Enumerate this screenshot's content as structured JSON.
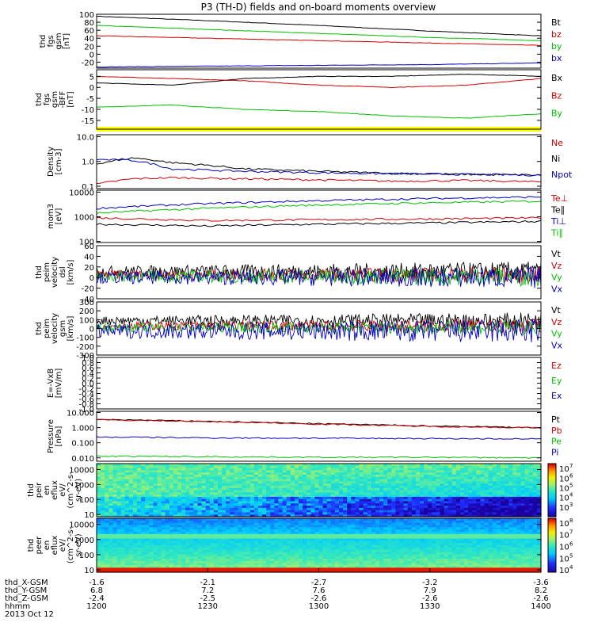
{
  "title": "P3 (TH-D) fields and on-board moments overview",
  "chart_data": [
    {
      "type": "line",
      "ylabel": [
        "thd",
        "fgs",
        "gsm",
        "[nT]"
      ],
      "ylim": [
        -35,
        100
      ],
      "yticks": [
        {
          "v": 100,
          "t": "100"
        },
        {
          "v": 80,
          "t": "80"
        },
        {
          "v": 60,
          "t": "60"
        },
        {
          "v": 40,
          "t": "40"
        },
        {
          "v": 20,
          "t": "20"
        },
        {
          "v": 0,
          "t": "0"
        },
        {
          "v": -20,
          "t": "-20"
        }
      ],
      "series": [
        {
          "name": "Bt",
          "color": "#000000",
          "x": [
            0,
            60,
            120,
            180,
            240
          ],
          "values": [
            95,
            84,
            72,
            58,
            46
          ]
        },
        {
          "name": "bz",
          "color": "#d00000",
          "x": [
            0,
            60,
            120,
            180,
            240
          ],
          "values": [
            46,
            40,
            34,
            28,
            22
          ]
        },
        {
          "name": "by",
          "color": "#00c000",
          "x": [
            0,
            60,
            120,
            180,
            240
          ],
          "values": [
            72,
            62,
            52,
            42,
            34
          ]
        },
        {
          "name": "bx",
          "color": "#0000c0",
          "x": [
            0,
            60,
            120,
            180,
            240
          ],
          "values": [
            -32,
            -30,
            -28,
            -26,
            -22
          ]
        }
      ]
    },
    {
      "type": "line",
      "ylabel": [
        "thd",
        "fgs",
        "gsm",
        "-BFF",
        "[nT]"
      ],
      "ylim": [
        -19,
        8
      ],
      "yticks": [
        {
          "v": 5,
          "t": "5"
        },
        {
          "v": 0,
          "t": "0"
        },
        {
          "v": -5,
          "t": "-5"
        },
        {
          "v": -10,
          "t": "-10"
        },
        {
          "v": -15,
          "t": "-15"
        }
      ],
      "series": [
        {
          "name": "Bx",
          "color": "#000000",
          "x": [
            0,
            40,
            80,
            120,
            160,
            200,
            240
          ],
          "values": [
            2,
            1,
            4,
            5,
            5,
            6,
            5
          ]
        },
        {
          "name": "Bz",
          "color": "#d00000",
          "x": [
            0,
            40,
            80,
            120,
            160,
            200,
            240
          ],
          "values": [
            5,
            4,
            3,
            1,
            0,
            1,
            4
          ]
        },
        {
          "name": "By",
          "color": "#00c000",
          "x": [
            0,
            40,
            80,
            120,
            160,
            200,
            240
          ],
          "values": [
            -9,
            -8,
            -10,
            -11,
            -13,
            -14,
            -12
          ]
        }
      ]
    },
    {
      "type": "line",
      "ylabel": [
        "Density",
        "[cm-3]"
      ],
      "scale": "log",
      "ylim": [
        0.08,
        12
      ],
      "yticks": [
        {
          "v": 10,
          "t": "10.0"
        },
        {
          "v": 1,
          "t": "1.0"
        },
        {
          "v": 0.1,
          "t": "0.1"
        }
      ],
      "series": [
        {
          "name": "Ne",
          "color": "#d00000",
          "x": [
            0,
            20,
            40,
            80,
            120,
            160,
            200,
            240
          ],
          "values": [
            0.12,
            0.2,
            0.22,
            0.2,
            0.18,
            0.16,
            0.17,
            0.15
          ]
        },
        {
          "name": "Ni",
          "color": "#000000",
          "x": [
            0,
            20,
            40,
            80,
            120,
            160,
            200,
            240
          ],
          "values": [
            0.8,
            1.4,
            0.9,
            0.5,
            0.4,
            0.33,
            0.3,
            0.28
          ]
        },
        {
          "name": "Npot",
          "color": "#0000c0",
          "x": [
            0,
            20,
            40,
            80,
            120,
            160,
            200,
            240
          ],
          "values": [
            1.2,
            1.1,
            0.5,
            0.4,
            0.35,
            0.32,
            0.3,
            0.28
          ]
        }
      ]
    },
    {
      "type": "line",
      "ylabel": [
        "mom3",
        "[eV]"
      ],
      "scale": "log",
      "ylim": [
        90,
        12000
      ],
      "yticks": [
        {
          "v": 10000,
          "t": "10000"
        },
        {
          "v": 1000,
          "t": "1000"
        },
        {
          "v": 100,
          "t": "100"
        }
      ],
      "series": [
        {
          "name": "Te⊥",
          "color": "#d00000",
          "x": [
            0,
            60,
            120,
            180,
            240
          ],
          "values": [
            900,
            700,
            760,
            820,
            900
          ]
        },
        {
          "name": "Te∥",
          "color": "#000000",
          "x": [
            0,
            60,
            120,
            180,
            240
          ],
          "values": [
            500,
            420,
            500,
            560,
            650
          ]
        },
        {
          "name": "Ti⊥",
          "color": "#0000c0",
          "x": [
            0,
            60,
            120,
            180,
            240
          ],
          "values": [
            2200,
            3400,
            4500,
            5500,
            6400
          ]
        },
        {
          "name": "Ti∥",
          "color": "#00c000",
          "x": [
            0,
            60,
            120,
            180,
            240
          ],
          "values": [
            1400,
            2200,
            3000,
            3700,
            4300
          ]
        }
      ]
    },
    {
      "type": "line",
      "ylabel": [
        "thd",
        "peim",
        "velocity",
        "dsl",
        "[km/s]"
      ],
      "ylim": [
        -40,
        60
      ],
      "yticks": [
        {
          "v": 60,
          "t": "60"
        },
        {
          "v": 40,
          "t": "40"
        },
        {
          "v": 20,
          "t": "20"
        },
        {
          "v": 0,
          "t": "0"
        },
        {
          "v": -20,
          "t": "-20"
        },
        {
          "v": -40,
          "t": "-40"
        }
      ],
      "series": [
        {
          "name": "Vt",
          "color": "#000000",
          "base": 12,
          "amp": 14
        },
        {
          "name": "Vz",
          "color": "#d00000",
          "base": 5,
          "amp": 12
        },
        {
          "name": "Vy",
          "color": "#00c000",
          "base": 2,
          "amp": 14
        },
        {
          "name": "Vx",
          "color": "#0000c0",
          "base": 0,
          "amp": 16
        }
      ]
    },
    {
      "type": "line",
      "ylabel": [
        "thd",
        "peim",
        "velocity",
        "gsm",
        "[km/s]"
      ],
      "ylim": [
        -300,
        300
      ],
      "yticks": [
        {
          "v": 300,
          "t": "300"
        },
        {
          "v": 200,
          "t": "200"
        },
        {
          "v": 100,
          "t": "100"
        },
        {
          "v": 0,
          "t": "0"
        },
        {
          "v": -100,
          "t": "-100"
        },
        {
          "v": -200,
          "t": "-200"
        },
        {
          "v": -300,
          "t": "-300"
        }
      ],
      "series": [
        {
          "name": "Vt",
          "color": "#000000",
          "base": 90,
          "amp": 70
        },
        {
          "name": "Vz",
          "color": "#d00000",
          "base": 30,
          "amp": 60
        },
        {
          "name": "Vy",
          "color": "#00c000",
          "base": 10,
          "amp": 60
        },
        {
          "name": "Vx",
          "color": "#0000c0",
          "base": -30,
          "amp": 110
        }
      ]
    },
    {
      "type": "line",
      "ylabel": [
        "E=-VxB",
        "[mV/m]"
      ],
      "ylim": [
        -1,
        1
      ],
      "yticks": [
        {
          "v": 1,
          "t": "1.0"
        },
        {
          "v": 0.8,
          "t": "0.8"
        },
        {
          "v": 0.6,
          "t": "0.6"
        },
        {
          "v": 0.4,
          "t": "0.4"
        },
        {
          "v": 0.2,
          "t": "0.2"
        },
        {
          "v": 0,
          "t": "0.0"
        },
        {
          "v": -0.2,
          "t": "-0.2"
        },
        {
          "v": -0.4,
          "t": "-0.4"
        },
        {
          "v": -0.6,
          "t": "-0.6"
        },
        {
          "v": -0.8,
          "t": "-0.8"
        },
        {
          "v": -1,
          "t": "-1.0"
        }
      ],
      "series": [
        {
          "name": "Ez",
          "color": "#d00000",
          "x": [],
          "values": []
        },
        {
          "name": "Ey",
          "color": "#00c000",
          "x": [],
          "values": []
        },
        {
          "name": "Ex",
          "color": "#0000c0",
          "x": [],
          "values": []
        }
      ]
    },
    {
      "type": "line",
      "ylabel": [
        "Pressure",
        "[nPa]"
      ],
      "scale": "log",
      "ylim": [
        0.006,
        12
      ],
      "yticks": [
        {
          "v": 10,
          "t": "10.000"
        },
        {
          "v": 1,
          "t": "1.000"
        },
        {
          "v": 0.1,
          "t": "0.100"
        },
        {
          "v": 0.01,
          "t": "0.010"
        }
      ],
      "series": [
        {
          "name": "Pt",
          "color": "#000000",
          "x": [
            0,
            60,
            120,
            180,
            240
          ],
          "values": [
            3.5,
            2.6,
            1.8,
            1.3,
            1.0
          ]
        },
        {
          "name": "Pb",
          "color": "#d00000",
          "x": [
            0,
            60,
            120,
            180,
            240
          ],
          "values": [
            3.3,
            2.5,
            1.7,
            1.2,
            0.95
          ]
        },
        {
          "name": "Pe",
          "color": "#00c000",
          "x": [
            0,
            60,
            120,
            180,
            240
          ],
          "values": [
            0.013,
            0.012,
            0.011,
            0.011,
            0.01
          ]
        },
        {
          "name": "Pi",
          "color": "#0000c0",
          "x": [
            0,
            60,
            120,
            180,
            240
          ],
          "values": [
            0.24,
            0.21,
            0.2,
            0.19,
            0.18
          ]
        }
      ]
    },
    {
      "type": "heatmap",
      "ylabel": [
        "thd",
        "peir",
        "en",
        "eflux",
        "eV/",
        "(cm^2-s-",
        "sr-eV)"
      ],
      "scale": "log",
      "ylim": [
        7,
        25000
      ],
      "yticks": [
        {
          "v": 10000,
          "t": "10000"
        },
        {
          "v": 1000,
          "t": "1000"
        },
        {
          "v": 100,
          "t": "100"
        },
        {
          "v": 10,
          "t": "10"
        }
      ],
      "colorbar": {
        "range": [
          2,
          7.5
        ],
        "ticks": [
          {
            "v": 7,
            "t": "10",
            "e": "7"
          },
          {
            "v": 6,
            "t": "10",
            "e": "6"
          },
          {
            "v": 5,
            "t": "10",
            "e": "5"
          },
          {
            "v": 4,
            "t": "10",
            "e": "4"
          },
          {
            "v": 3,
            "t": "10",
            "e": "3"
          }
        ]
      }
    },
    {
      "type": "heatmap",
      "ylabel": [
        "thd",
        "peer",
        "en",
        "eflux",
        "eV/",
        "(cm^2-s-",
        "sr-eV)"
      ],
      "scale": "log",
      "ylim": [
        7,
        25000
      ],
      "yticks": [
        {
          "v": 10000,
          "t": "10000"
        },
        {
          "v": 1000,
          "t": "1000"
        },
        {
          "v": 100,
          "t": "100"
        },
        {
          "v": 10,
          "t": "10"
        }
      ],
      "colorbar": {
        "range": [
          3.8,
          8.4
        ],
        "ticks": [
          {
            "v": 8,
            "t": "10",
            "e": "8"
          },
          {
            "v": 7,
            "t": "10",
            "e": "7"
          },
          {
            "v": 6,
            "t": "10",
            "e": "6"
          },
          {
            "v": 5,
            "t": "10",
            "e": "5"
          },
          {
            "v": 4,
            "t": "10",
            "e": "4"
          }
        ]
      }
    }
  ],
  "x_axis": {
    "ticks": [
      {
        "x": 0,
        "values": [
          "-1.6",
          "6.8",
          "-2.4",
          "1200"
        ]
      },
      {
        "x": 30,
        "values": [
          "-2.1",
          "7.2",
          "-2.5",
          "1230"
        ]
      },
      {
        "x": 60,
        "values": [
          "-2.7",
          "7.6",
          "-2.6",
          "1300"
        ]
      },
      {
        "x": 90,
        "values": [
          "-3.2",
          "7.9",
          "-2.6",
          "1330"
        ]
      },
      {
        "x": 120,
        "values": [
          "-3.6",
          "8.2",
          "-2.6",
          "1400"
        ]
      }
    ],
    "row_labels": [
      "thd_X-GSM",
      "thd_Y-GSM",
      "thd_Z-GSM",
      "hhmm"
    ],
    "date": "2013 Oct 12"
  }
}
